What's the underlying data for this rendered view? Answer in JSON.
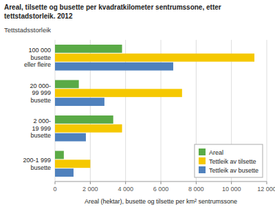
{
  "chart_data": {
    "type": "bar",
    "orientation": "horizontal",
    "title": "Areal, tilsette og busette per kvadratkilometer sentrumssone, etter\ntettstadstorleik. 2012",
    "subtitle": "Tettstadsstorleik",
    "x_label": "Areal (hektar), busette og tilsette per km² sentrumssone",
    "categories": [
      "100 000\nbusette\neller fleire",
      "20 000-\n99 999\nbusette",
      "2 000-\n19 999\nbusette",
      "200-1 999\nbusette"
    ],
    "series": [
      {
        "name": "Areal",
        "color": "#5aaa46",
        "values": [
          3800,
          1350,
          3300,
          500
        ]
      },
      {
        "name": "Tettleik av tilsette",
        "color": "#f5c800",
        "values": [
          11300,
          7200,
          3800,
          2000
        ]
      },
      {
        "name": "Tettleik av busette",
        "color": "#4f81bd",
        "values": [
          6700,
          2800,
          1750,
          1050
        ]
      }
    ],
    "xlim": [
      0,
      12000
    ],
    "xticks": [
      0,
      {
        "value": 2000,
        "label": "2 000"
      },
      {
        "value": 4000,
        "label": "4 000"
      },
      {
        "value": 6000,
        "label": "6 000"
      },
      {
        "value": 8000,
        "label": "8 000"
      },
      {
        "value": 10000,
        "label": "10 000"
      },
      {
        "value": 12000,
        "label": "12 000"
      }
    ],
    "grid": true,
    "legend": "lower right"
  }
}
